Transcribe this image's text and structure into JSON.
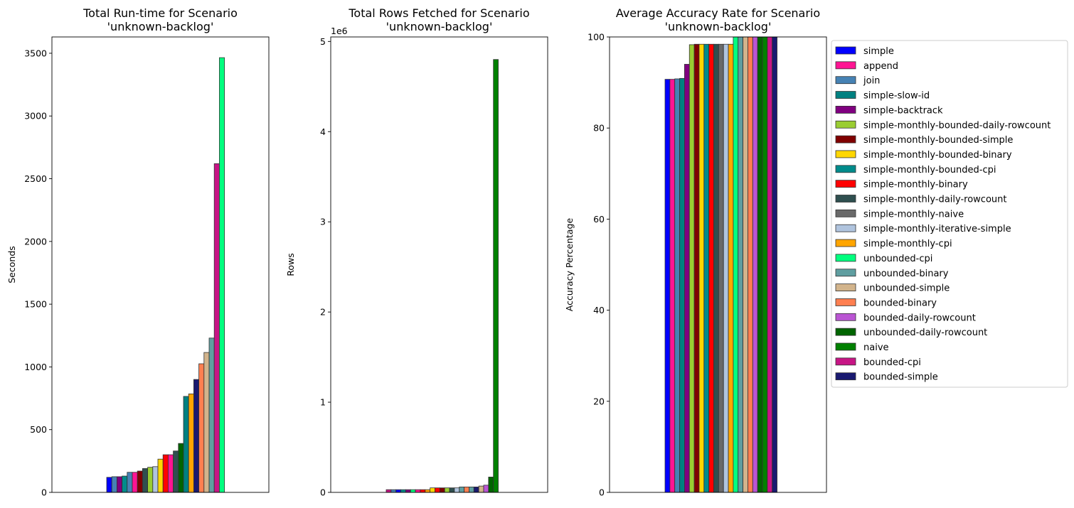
{
  "chart_data": [
    {
      "type": "bar",
      "title": "Total Run-time for Scenario\n'unknown-backlog'",
      "xlabel": "",
      "ylabel": "Seconds",
      "ylim": [
        0,
        3630
      ],
      "yticks": [
        0,
        500,
        1000,
        1500,
        2000,
        2500,
        3000,
        3500
      ],
      "ytick_labels": [
        "0",
        "500",
        "1000",
        "1500",
        "2000",
        "2500",
        "3000",
        "3500"
      ],
      "offset_text": "",
      "grid": false,
      "bars": [
        {
          "color": "#0000ff",
          "value": 120
        },
        {
          "color": "#4682b4",
          "value": 125
        },
        {
          "color": "#800080",
          "value": 125
        },
        {
          "color": "#008b8b",
          "value": 130
        },
        {
          "color": "#4682b4",
          "value": 160
        },
        {
          "color": "#ff1493",
          "value": 160
        },
        {
          "color": "#800000",
          "value": 170
        },
        {
          "color": "#2f4f4f",
          "value": 190
        },
        {
          "color": "#9acd32",
          "value": 200
        },
        {
          "color": "#b0c4de",
          "value": 205
        },
        {
          "color": "#ffd700",
          "value": 265
        },
        {
          "color": "#ff0000",
          "value": 300
        },
        {
          "color": "#ff1493",
          "value": 300
        },
        {
          "color": "#2f4f4f",
          "value": 330
        },
        {
          "color": "#006400",
          "value": 390
        },
        {
          "color": "#008080",
          "value": 765
        },
        {
          "color": "#ffa500",
          "value": 785
        },
        {
          "color": "#191970",
          "value": 900
        },
        {
          "color": "#ff7f50",
          "value": 1025
        },
        {
          "color": "#d2b48c",
          "value": 1115
        },
        {
          "color": "#5f9ea0",
          "value": 1230
        },
        {
          "color": "#c71585",
          "value": 2620
        },
        {
          "color": "#00ff7f",
          "value": 3465
        }
      ]
    },
    {
      "type": "bar",
      "title": "Total Rows Fetched for Scenario\n'unknown-backlog'",
      "xlabel": "",
      "ylabel": "Rows",
      "ylim": [
        0,
        5.05
      ],
      "yticks": [
        0,
        1,
        2,
        3,
        4,
        5
      ],
      "ytick_labels": [
        "0",
        "1",
        "2",
        "3",
        "4",
        "5"
      ],
      "offset_text": "1e6",
      "grid": false,
      "bars": [
        {
          "color": "#c71585",
          "value": 0.03
        },
        {
          "color": "#4682b4",
          "value": 0.03
        },
        {
          "color": "#0000ff",
          "value": 0.03
        },
        {
          "color": "#008b8b",
          "value": 0.03
        },
        {
          "color": "#800080",
          "value": 0.03
        },
        {
          "color": "#00ff7f",
          "value": 0.03
        },
        {
          "color": "#ff1493",
          "value": 0.03
        },
        {
          "color": "#ff0000",
          "value": 0.03
        },
        {
          "color": "#ffa500",
          "value": 0.03
        },
        {
          "color": "#ffd700",
          "value": 0.05
        },
        {
          "color": "#ff0000",
          "value": 0.05
        },
        {
          "color": "#800000",
          "value": 0.05
        },
        {
          "color": "#9acd32",
          "value": 0.05
        },
        {
          "color": "#2f4f4f",
          "value": 0.05
        },
        {
          "color": "#b0c4de",
          "value": 0.05
        },
        {
          "color": "#5f9ea0",
          "value": 0.06
        },
        {
          "color": "#ff7f50",
          "value": 0.06
        },
        {
          "color": "#5f9ea0",
          "value": 0.06
        },
        {
          "color": "#191970",
          "value": 0.06
        },
        {
          "color": "#d2b48c",
          "value": 0.07
        },
        {
          "color": "#ba55d3",
          "value": 0.08
        },
        {
          "color": "#006400",
          "value": 0.17
        },
        {
          "color": "#008000",
          "value": 4.8
        }
      ]
    },
    {
      "type": "bar",
      "title": "Average Accuracy Rate for Scenario\n'unknown-backlog'",
      "xlabel": "",
      "ylabel": "Accuracy Percentage",
      "ylim": [
        0,
        100
      ],
      "yticks": [
        0,
        20,
        40,
        60,
        80,
        100
      ],
      "ytick_labels": [
        "0",
        "20",
        "40",
        "60",
        "80",
        "100"
      ],
      "offset_text": "",
      "grid": false,
      "bars": [
        {
          "color": "#0000ff",
          "value": 90.7
        },
        {
          "color": "#ff1493",
          "value": 90.7
        },
        {
          "color": "#4682b4",
          "value": 90.8
        },
        {
          "color": "#008080",
          "value": 90.9
        },
        {
          "color": "#800080",
          "value": 94
        },
        {
          "color": "#9acd32",
          "value": 98.3
        },
        {
          "color": "#800000",
          "value": 98.4
        },
        {
          "color": "#ffd700",
          "value": 98.4
        },
        {
          "color": "#008b8b",
          "value": 98.4
        },
        {
          "color": "#ff0000",
          "value": 98.4
        },
        {
          "color": "#2f4f4f",
          "value": 98.4
        },
        {
          "color": "#696969",
          "value": 98.4
        },
        {
          "color": "#b0c4de",
          "value": 98.4
        },
        {
          "color": "#ffa500",
          "value": 98.4
        },
        {
          "color": "#00ff7f",
          "value": 100
        },
        {
          "color": "#5f9ea0",
          "value": 100
        },
        {
          "color": "#d2b48c",
          "value": 100
        },
        {
          "color": "#ff7f50",
          "value": 100
        },
        {
          "color": "#ba55d3",
          "value": 100
        },
        {
          "color": "#006400",
          "value": 100
        },
        {
          "color": "#008000",
          "value": 100
        },
        {
          "color": "#c71585",
          "value": 100
        },
        {
          "color": "#191970",
          "value": 100
        }
      ]
    }
  ],
  "legend": {
    "placement": "outside-right",
    "entries": [
      {
        "name": "simple",
        "color": "#0000ff"
      },
      {
        "name": "append",
        "color": "#ff1493"
      },
      {
        "name": "join",
        "color": "#4682b4"
      },
      {
        "name": "simple-slow-id",
        "color": "#008080"
      },
      {
        "name": "simple-backtrack",
        "color": "#800080"
      },
      {
        "name": "simple-monthly-bounded-daily-rowcount",
        "color": "#9acd32"
      },
      {
        "name": "simple-monthly-bounded-simple",
        "color": "#800000"
      },
      {
        "name": "simple-monthly-bounded-binary",
        "color": "#ffd700"
      },
      {
        "name": "simple-monthly-bounded-cpi",
        "color": "#008b8b"
      },
      {
        "name": "simple-monthly-binary",
        "color": "#ff0000"
      },
      {
        "name": "simple-monthly-daily-rowcount",
        "color": "#2f4f4f"
      },
      {
        "name": "simple-monthly-naive",
        "color": "#696969"
      },
      {
        "name": "simple-monthly-iterative-simple",
        "color": "#b0c4de"
      },
      {
        "name": "simple-monthly-cpi",
        "color": "#ffa500"
      },
      {
        "name": "unbounded-cpi",
        "color": "#00ff7f"
      },
      {
        "name": "unbounded-binary",
        "color": "#5f9ea0"
      },
      {
        "name": "unbounded-simple",
        "color": "#d2b48c"
      },
      {
        "name": "bounded-binary",
        "color": "#ff7f50"
      },
      {
        "name": "bounded-daily-rowcount",
        "color": "#ba55d3"
      },
      {
        "name": "unbounded-daily-rowcount",
        "color": "#006400"
      },
      {
        "name": "naive",
        "color": "#008000"
      },
      {
        "name": "bounded-cpi",
        "color": "#c71585"
      },
      {
        "name": "bounded-simple",
        "color": "#191970"
      }
    ]
  }
}
